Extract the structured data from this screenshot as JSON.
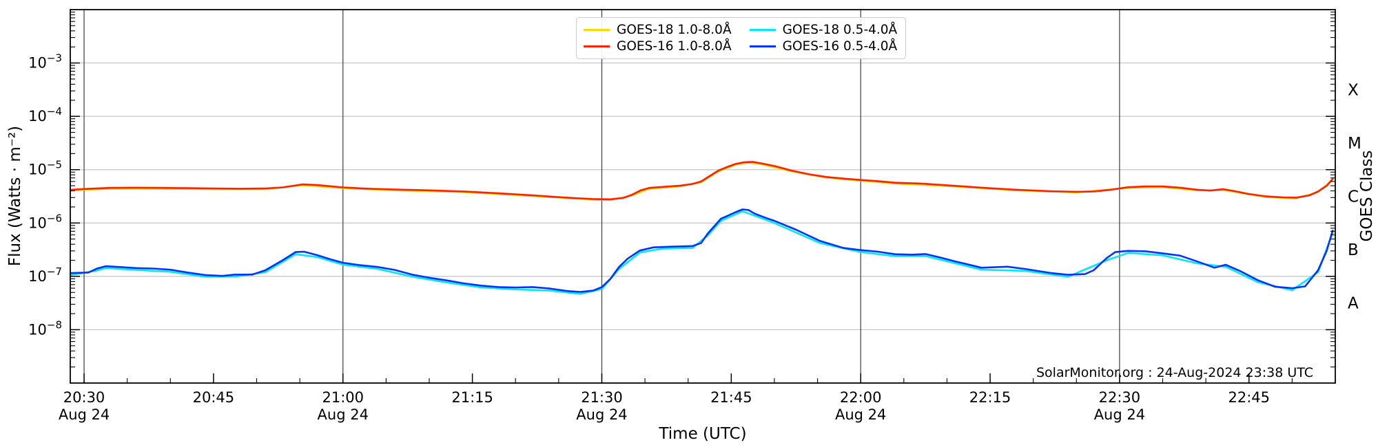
{
  "figure": {
    "attribution": "SolarMonitor.org : 24-Aug-2024 23:38 UTC"
  },
  "chart_data": {
    "type": "line",
    "title": "",
    "xlabel": "Time (UTC)",
    "ylabel": "Flux (Watts · m⁻²)",
    "ylabel_right": "GOES Class",
    "x_axis": {
      "domain_minutes_from_2030": [
        -1.6,
        145
      ],
      "minor_tick_step_minutes": 5,
      "major_ticks": [
        {
          "t": 0,
          "label": "20:30",
          "date": "Aug 24",
          "gridline": true
        },
        {
          "t": 15,
          "label": "20:45",
          "date": "",
          "gridline": false
        },
        {
          "t": 30,
          "label": "21:00",
          "date": "Aug 24",
          "gridline": true
        },
        {
          "t": 45,
          "label": "21:15",
          "date": "",
          "gridline": false
        },
        {
          "t": 60,
          "label": "21:30",
          "date": "Aug 24",
          "gridline": true
        },
        {
          "t": 75,
          "label": "21:45",
          "date": "",
          "gridline": false
        },
        {
          "t": 90,
          "label": "22:00",
          "date": "Aug 24",
          "gridline": true
        },
        {
          "t": 105,
          "label": "22:15",
          "date": "",
          "gridline": false
        },
        {
          "t": 120,
          "label": "22:30",
          "date": "Aug 24",
          "gridline": true
        },
        {
          "t": 135,
          "label": "22:45",
          "date": "",
          "gridline": false
        }
      ]
    },
    "y_axis": {
      "scale": "log",
      "ylim": [
        1e-09,
        0.01
      ],
      "ticks": [
        {
          "exp": "−3",
          "text": "10⁻³"
        },
        {
          "exp": "−4",
          "text": "10⁻⁴"
        },
        {
          "exp": "−5",
          "text": "10⁻⁵"
        },
        {
          "exp": "−6",
          "text": "10⁻⁶"
        },
        {
          "exp": "−7",
          "text": "10⁻⁷"
        },
        {
          "exp": "−8",
          "text": "10⁻⁸"
        }
      ],
      "gridlines_at_exp": [
        -3,
        -4,
        -5,
        -6,
        -7,
        -8
      ]
    },
    "right_axis_classes": [
      {
        "label": "X",
        "center_exp": -3.5
      },
      {
        "label": "M",
        "center_exp": -4.5
      },
      {
        "label": "C",
        "center_exp": -5.5
      },
      {
        "label": "B",
        "center_exp": -6.5
      },
      {
        "label": "A",
        "center_exp": -7.5
      }
    ],
    "colors": {
      "grid_horizontal": "#c4c4c4",
      "grid_vertical": "#3c3c3c",
      "spine": "#000000",
      "background": "#ffffff"
    },
    "series": [
      {
        "name": "GOES-18 1.0-8.0Å",
        "color": "#ffd800",
        "points": [
          [
            -1.5,
            4.1e-06
          ],
          [
            3,
            4.4e-06
          ],
          [
            9,
            4.4e-06
          ],
          [
            15,
            4.3e-06
          ],
          [
            21,
            4.3e-06
          ],
          [
            25.3,
            5.1e-06
          ],
          [
            30,
            4.5e-06
          ],
          [
            36,
            4.1e-06
          ],
          [
            44,
            3.8e-06
          ],
          [
            52,
            3.2e-06
          ],
          [
            59,
            2.75e-06
          ],
          [
            61,
            2.7e-06
          ],
          [
            63.5,
            3.3e-06
          ],
          [
            65.5,
            4.4e-06
          ],
          [
            69,
            4.85e-06
          ],
          [
            71.5,
            5.8e-06
          ],
          [
            73.5,
            9.3e-06
          ],
          [
            75.5,
            1.24e-05
          ],
          [
            77,
            1.36e-05
          ],
          [
            78.5,
            1.27e-05
          ],
          [
            82,
            9.3e-06
          ],
          [
            86,
            7.1e-06
          ],
          [
            90,
            6.2e-06
          ],
          [
            94,
            5.5e-06
          ],
          [
            100,
            4.95e-06
          ],
          [
            108,
            4.1e-06
          ],
          [
            115,
            3.75e-06
          ],
          [
            121,
            4.55e-06
          ],
          [
            125,
            4.7e-06
          ],
          [
            129,
            4.1e-06
          ],
          [
            132,
            4.15e-06
          ],
          [
            137,
            3.05e-06
          ],
          [
            140.5,
            2.9e-06
          ],
          [
            143,
            3.8e-06
          ],
          [
            144.7,
            6.5e-06
          ]
        ]
      },
      {
        "name": "GOES-18 0.5-4.0Å",
        "color": "#00e8ff",
        "points": [
          [
            -1.5,
            1.06e-07
          ],
          [
            1.5,
            1.29e-07
          ],
          [
            2.5,
            1.43e-07
          ],
          [
            6,
            1.32e-07
          ],
          [
            10,
            1.22e-07
          ],
          [
            14,
            9.8e-08
          ],
          [
            17.5,
            9.9e-08
          ],
          [
            21,
            1.2e-07
          ],
          [
            24.5,
            2.6e-07
          ],
          [
            27,
            2.3e-07
          ],
          [
            30,
            1.66e-07
          ],
          [
            34,
            1.38e-07
          ],
          [
            38,
            9.9e-08
          ],
          [
            42,
            7.7e-08
          ],
          [
            46,
            6.2e-08
          ],
          [
            50,
            5.7e-08
          ],
          [
            54,
            5.4e-08
          ],
          [
            57.5,
            4.7e-08
          ],
          [
            60,
            5.8e-08
          ],
          [
            62,
            1.38e-07
          ],
          [
            64.4,
            2.8e-07
          ],
          [
            67,
            3.3e-07
          ],
          [
            70.5,
            3.4e-07
          ],
          [
            72.3,
            5.9e-07
          ],
          [
            73.8,
            1.1e-06
          ],
          [
            76.3,
            1.66e-06
          ],
          [
            80,
            1e-06
          ],
          [
            85.3,
            4.2e-07
          ],
          [
            90,
            2.85e-07
          ],
          [
            94,
            2.4e-07
          ],
          [
            97.5,
            2.4e-07
          ],
          [
            101,
            1.75e-07
          ],
          [
            104,
            1.33e-07
          ],
          [
            109,
            1.27e-07
          ],
          [
            114,
            9.8e-08
          ],
          [
            118.5,
            2e-07
          ],
          [
            121,
            2.76e-07
          ],
          [
            125,
            2.48e-07
          ],
          [
            129,
            1.75e-07
          ],
          [
            132.3,
            1.52e-07
          ],
          [
            136,
            7.8e-08
          ],
          [
            140,
            5.5e-08
          ],
          [
            143,
            1.2e-07
          ],
          [
            144.7,
            6.6e-07
          ]
        ]
      },
      {
        "name": "GOES-16 1.0-8.0Å",
        "color": "#ff2200",
        "points": [
          [
            -1.5,
            4.2e-06
          ],
          [
            0,
            4.35e-06
          ],
          [
            3,
            4.55e-06
          ],
          [
            6,
            4.6e-06
          ],
          [
            9,
            4.55e-06
          ],
          [
            12,
            4.5e-06
          ],
          [
            15,
            4.45e-06
          ],
          [
            18,
            4.4e-06
          ],
          [
            21,
            4.45e-06
          ],
          [
            23,
            4.65e-06
          ],
          [
            25.3,
            5.3e-06
          ],
          [
            27,
            5.15e-06
          ],
          [
            30,
            4.65e-06
          ],
          [
            33,
            4.4e-06
          ],
          [
            36,
            4.25e-06
          ],
          [
            40,
            4.1e-06
          ],
          [
            44,
            3.9e-06
          ],
          [
            48,
            3.6e-06
          ],
          [
            52,
            3.3e-06
          ],
          [
            55,
            3.05e-06
          ],
          [
            57,
            2.92e-06
          ],
          [
            59,
            2.82e-06
          ],
          [
            61,
            2.78e-06
          ],
          [
            62.5,
            2.95e-06
          ],
          [
            63.5,
            3.4e-06
          ],
          [
            64.5,
            4.1e-06
          ],
          [
            65.5,
            4.55e-06
          ],
          [
            67,
            4.75e-06
          ],
          [
            69,
            5e-06
          ],
          [
            70.5,
            5.4e-06
          ],
          [
            71.5,
            6e-06
          ],
          [
            72.5,
            7.6e-06
          ],
          [
            73.5,
            9.6e-06
          ],
          [
            74.5,
            1.12e-05
          ],
          [
            75.5,
            1.28e-05
          ],
          [
            76.5,
            1.38e-05
          ],
          [
            77.5,
            1.4e-05
          ],
          [
            78.5,
            1.31e-05
          ],
          [
            80,
            1.17e-05
          ],
          [
            82,
            9.6e-06
          ],
          [
            84,
            8.2e-06
          ],
          [
            86,
            7.3e-06
          ],
          [
            88,
            6.8e-06
          ],
          [
            90,
            6.4e-06
          ],
          [
            92,
            6.1e-06
          ],
          [
            94,
            5.7e-06
          ],
          [
            97,
            5.5e-06
          ],
          [
            100,
            5.1e-06
          ],
          [
            104,
            4.6e-06
          ],
          [
            108,
            4.2e-06
          ],
          [
            112,
            3.95e-06
          ],
          [
            115,
            3.85e-06
          ],
          [
            117,
            3.9e-06
          ],
          [
            119,
            4.2e-06
          ],
          [
            121,
            4.7e-06
          ],
          [
            123,
            4.85e-06
          ],
          [
            125,
            4.85e-06
          ],
          [
            127,
            4.6e-06
          ],
          [
            129,
            4.2e-06
          ],
          [
            130.5,
            4.05e-06
          ],
          [
            132,
            4.3e-06
          ],
          [
            133.5,
            3.9e-06
          ],
          [
            135,
            3.5e-06
          ],
          [
            137,
            3.15e-06
          ],
          [
            139,
            3.02e-06
          ],
          [
            140.5,
            3e-06
          ],
          [
            142,
            3.3e-06
          ],
          [
            143,
            3.9e-06
          ],
          [
            144,
            5e-06
          ],
          [
            144.7,
            6.7e-06
          ]
        ]
      },
      {
        "name": "GOES-16 0.5-4.0Å",
        "color": "#0433ff",
        "points": [
          [
            -1.5,
            1.15e-07
          ],
          [
            0.5,
            1.18e-07
          ],
          [
            1.5,
            1.4e-07
          ],
          [
            2.5,
            1.55e-07
          ],
          [
            4,
            1.5e-07
          ],
          [
            6,
            1.43e-07
          ],
          [
            8,
            1.4e-07
          ],
          [
            10,
            1.33e-07
          ],
          [
            12,
            1.18e-07
          ],
          [
            14,
            1.06e-07
          ],
          [
            16,
            1.02e-07
          ],
          [
            17.5,
            1.08e-07
          ],
          [
            19.5,
            1.08e-07
          ],
          [
            21,
            1.3e-07
          ],
          [
            23,
            2e-07
          ],
          [
            24.5,
            2.85e-07
          ],
          [
            25.5,
            2.9e-07
          ],
          [
            27,
            2.5e-07
          ],
          [
            28.5,
            2.1e-07
          ],
          [
            30,
            1.8e-07
          ],
          [
            32,
            1.62e-07
          ],
          [
            34,
            1.5e-07
          ],
          [
            36,
            1.32e-07
          ],
          [
            38,
            1.08e-07
          ],
          [
            40,
            9.4e-08
          ],
          [
            42,
            8.4e-08
          ],
          [
            44,
            7.4e-08
          ],
          [
            46,
            6.7e-08
          ],
          [
            48,
            6.3e-08
          ],
          [
            50,
            6.2e-08
          ],
          [
            52,
            6.3e-08
          ],
          [
            54,
            5.9e-08
          ],
          [
            56,
            5.3e-08
          ],
          [
            57.5,
            5.1e-08
          ],
          [
            59,
            5.4e-08
          ],
          [
            60,
            6.3e-08
          ],
          [
            61,
            9e-08
          ],
          [
            62,
            1.5e-07
          ],
          [
            63,
            2.15e-07
          ],
          [
            64.4,
            3.05e-07
          ],
          [
            66,
            3.5e-07
          ],
          [
            68,
            3.6e-07
          ],
          [
            69.5,
            3.65e-07
          ],
          [
            70.5,
            3.7e-07
          ],
          [
            71.5,
            4.2e-07
          ],
          [
            72.3,
            6.4e-07
          ],
          [
            73,
            8.6e-07
          ],
          [
            73.8,
            1.2e-06
          ],
          [
            74.5,
            1.35e-06
          ],
          [
            75.5,
            1.6e-06
          ],
          [
            76.3,
            1.8e-06
          ],
          [
            77,
            1.75e-06
          ],
          [
            77.7,
            1.5e-06
          ],
          [
            79,
            1.25e-06
          ],
          [
            80,
            1.1e-06
          ],
          [
            82.5,
            7.5e-07
          ],
          [
            85.3,
            4.6e-07
          ],
          [
            88,
            3.4e-07
          ],
          [
            90,
            3.1e-07
          ],
          [
            92,
            2.9e-07
          ],
          [
            94,
            2.6e-07
          ],
          [
            96,
            2.55e-07
          ],
          [
            97.5,
            2.62e-07
          ],
          [
            99,
            2.3e-07
          ],
          [
            101,
            1.9e-07
          ],
          [
            104,
            1.45e-07
          ],
          [
            107,
            1.52e-07
          ],
          [
            109,
            1.38e-07
          ],
          [
            112,
            1.16e-07
          ],
          [
            114,
            1.07e-07
          ],
          [
            116,
            1.1e-07
          ],
          [
            117,
            1.3e-07
          ],
          [
            118.5,
            2.2e-07
          ],
          [
            119.5,
            2.85e-07
          ],
          [
            121,
            3e-07
          ],
          [
            123,
            2.95e-07
          ],
          [
            125,
            2.7e-07
          ],
          [
            127,
            2.45e-07
          ],
          [
            129,
            1.9e-07
          ],
          [
            131,
            1.45e-07
          ],
          [
            132.3,
            1.65e-07
          ],
          [
            134,
            1.25e-07
          ],
          [
            136,
            8.5e-08
          ],
          [
            138,
            6.4e-08
          ],
          [
            140,
            6e-08
          ],
          [
            141.5,
            6.5e-08
          ],
          [
            143,
            1.3e-07
          ],
          [
            144,
            3e-07
          ],
          [
            144.7,
            7.2e-07
          ]
        ]
      }
    ],
    "legend_position": "upper center",
    "grid": true
  }
}
